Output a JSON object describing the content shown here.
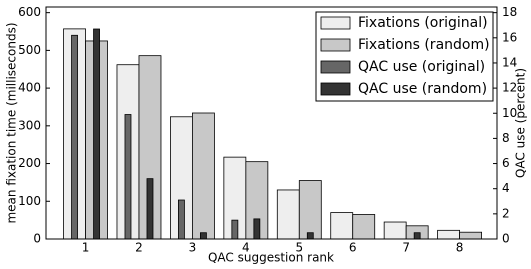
{
  "chart_data": {
    "type": "bar",
    "xlabel": "QAC suggestion rank",
    "ylabel": "mean fixation time (milliseconds)",
    "y2label": "QAC use (percent)",
    "x": [
      1,
      2,
      3,
      4,
      5,
      6,
      7,
      8
    ],
    "xlim": [
      0.26,
      8.7
    ],
    "xticks": [
      1,
      2,
      3,
      4,
      5,
      6,
      7,
      8
    ],
    "ylim": [
      0,
      615
    ],
    "yticks": [
      0,
      100,
      200,
      300,
      400,
      500,
      600
    ],
    "y2lim": [
      0,
      18.45
    ],
    "y2ticks": [
      0,
      2,
      4,
      6,
      8,
      10,
      12,
      14,
      16,
      18
    ],
    "legend": "upper right",
    "series": [
      {
        "name": "Fixations (original)",
        "color": "#eeeeee",
        "values": [
          557,
          462,
          324,
          217,
          130,
          70,
          45,
          23
        ]
      },
      {
        "name": "Fixations (random)",
        "color": "#c8c8c8",
        "values": [
          525,
          486,
          334,
          205,
          155,
          65,
          35,
          18
        ]
      },
      {
        "name": "QAC use (original)",
        "color": "#666666",
        "axis": "y2",
        "values": [
          16.2,
          9.9,
          3.1,
          1.5,
          0,
          0,
          0,
          0
        ]
      },
      {
        "name": "QAC use (random)",
        "color": "#333333",
        "axis": "y2",
        "values": [
          16.7,
          4.8,
          0.5,
          1.6,
          0.5,
          0,
          0.5,
          0
        ]
      }
    ]
  }
}
